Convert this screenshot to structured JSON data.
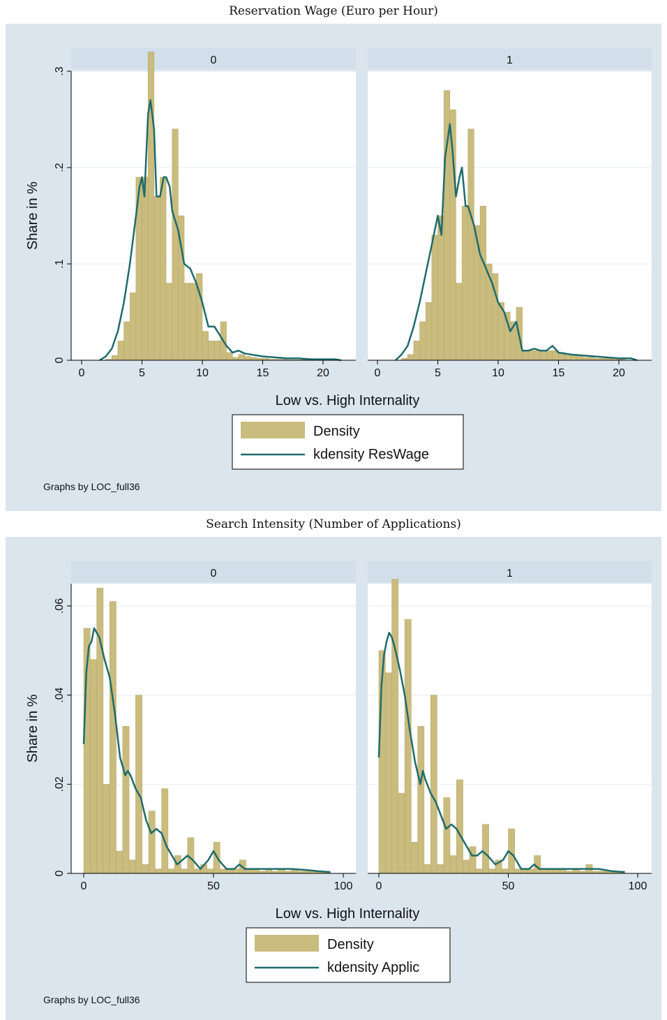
{
  "figures": [
    {
      "title": "Reservation Wage (Euro per Hour)",
      "ylabel": "Share in %",
      "xlabel": "Low vs. High Internality",
      "legend": [
        "Density",
        "kdensity ResWage"
      ],
      "note": "Graphs by LOC_full36"
    },
    {
      "title": "Search Intensity (Number of Applications)",
      "ylabel": "Share in %",
      "xlabel": "Low vs. High Internality",
      "legend": [
        "Density",
        "kdensity Applic"
      ],
      "note": "Graphs by LOC_full36"
    }
  ],
  "colors": {
    "background": "#dae5ee",
    "plot_region": "#ffffff",
    "strip": "#d2dfea",
    "bar_fill": "#c9bc7e",
    "bar_edge": "#b3a566",
    "density_line": "#1f6b6b",
    "gridline": "#e6ecf1"
  },
  "chart_data": [
    {
      "type": "bar",
      "title": "Reservation Wage (Euro per Hour)",
      "xlabel": "Low vs. High Internality",
      "ylabel": "Share in %",
      "xlim": [
        0,
        22
      ],
      "ylim": [
        0,
        0.3
      ],
      "xticks": [
        0,
        5,
        10,
        15,
        20
      ],
      "yticks": [
        0,
        0.1,
        0.2,
        0.3
      ],
      "ytick_labels": [
        "0",
        ".1",
        ".2",
        ".3"
      ],
      "grid": true,
      "legend_position": "bottom-center",
      "bin_width": 0.5,
      "series": [
        {
          "facet": "0",
          "name": "Density",
          "x": [
            2,
            2.5,
            3,
            3.5,
            4,
            4.5,
            5,
            5.5,
            6,
            6.5,
            7,
            7.5,
            8,
            8.5,
            9,
            9.5,
            10,
            10.5,
            11,
            11.5,
            12,
            12.5,
            13,
            13.5,
            14,
            14.5,
            15,
            15.5,
            16,
            16.5,
            17,
            17.5,
            18,
            18.5,
            19,
            19.5,
            20
          ],
          "values": [
            0.001,
            0.005,
            0.02,
            0.04,
            0.07,
            0.19,
            0.19,
            0.32,
            0.17,
            0.19,
            0.08,
            0.24,
            0.15,
            0.08,
            0.08,
            0.09,
            0.03,
            0.02,
            0.02,
            0.04,
            0.008,
            0.003,
            0.006,
            0.004,
            0.003,
            0.002,
            0.002,
            0.001,
            0.001,
            0.001,
            0.0005,
            0.0005,
            0.0005,
            0.0005,
            0.0005,
            0.0005,
            0.0005
          ]
        },
        {
          "facet": "0",
          "name": "kdensity ResWage",
          "x": [
            1.5,
            2,
            2.5,
            3,
            3.5,
            4,
            4.5,
            4.8,
            5,
            5.2,
            5.5,
            5.7,
            6,
            6.2,
            6.5,
            6.8,
            7,
            7.3,
            7.5,
            8,
            8.5,
            9,
            9.5,
            10,
            10.5,
            11,
            11.5,
            12,
            12.5,
            13,
            13.5,
            14,
            15,
            16,
            17,
            18,
            19,
            20,
            21,
            21.5
          ],
          "values": [
            0,
            0.004,
            0.012,
            0.03,
            0.06,
            0.1,
            0.15,
            0.18,
            0.19,
            0.17,
            0.255,
            0.27,
            0.24,
            0.17,
            0.17,
            0.19,
            0.19,
            0.18,
            0.155,
            0.135,
            0.1,
            0.095,
            0.08,
            0.06,
            0.035,
            0.035,
            0.025,
            0.015,
            0.008,
            0.01,
            0.007,
            0.006,
            0.004,
            0.003,
            0.002,
            0.002,
            0.001,
            0.001,
            0.001,
            0
          ]
        },
        {
          "facet": "1",
          "name": "Density",
          "x": [
            2,
            2.5,
            3,
            3.5,
            4,
            4.5,
            5,
            5.5,
            6,
            6.5,
            7,
            7.5,
            8,
            8.5,
            9,
            9.5,
            10,
            10.5,
            11,
            11.5,
            12,
            12.5,
            13,
            13.5,
            14,
            14.5,
            15,
            15.5,
            16,
            16.5,
            17,
            17.5,
            18,
            18.5,
            19,
            19.5,
            20
          ],
          "values": [
            0.002,
            0.006,
            0.02,
            0.04,
            0.06,
            0.13,
            0.15,
            0.28,
            0.26,
            0.08,
            0.16,
            0.24,
            0.14,
            0.16,
            0.1,
            0.09,
            0.06,
            0.05,
            0.04,
            0.055,
            0.01,
            0.01,
            0.01,
            0.01,
            0.01,
            0.01,
            0.008,
            0.006,
            0.005,
            0.004,
            0.003,
            0.003,
            0.002,
            0.002,
            0.002,
            0.001,
            0.001
          ]
        },
        {
          "facet": "1",
          "name": "kdensity ResWage",
          "x": [
            1.5,
            2,
            2.5,
            3,
            3.5,
            4,
            4.5,
            5,
            5.3,
            5.6,
            6,
            6.2,
            6.5,
            6.8,
            7,
            7.3,
            7.5,
            8,
            8.5,
            9,
            9.5,
            10,
            10.5,
            11,
            11.5,
            12,
            12.5,
            13,
            13.5,
            14,
            14.5,
            15,
            16,
            17,
            18,
            19,
            20,
            21,
            21.5
          ],
          "values": [
            0,
            0.006,
            0.015,
            0.035,
            0.06,
            0.09,
            0.12,
            0.15,
            0.13,
            0.21,
            0.245,
            0.22,
            0.17,
            0.19,
            0.2,
            0.16,
            0.16,
            0.14,
            0.11,
            0.095,
            0.08,
            0.06,
            0.05,
            0.03,
            0.04,
            0.01,
            0.01,
            0.012,
            0.01,
            0.01,
            0.015,
            0.008,
            0.006,
            0.005,
            0.004,
            0.003,
            0.002,
            0.002,
            0
          ]
        }
      ]
    },
    {
      "type": "bar",
      "title": "Search Intensity (Number of Applications)",
      "xlabel": "Low vs. High Internality",
      "ylabel": "Share in %",
      "xlim": [
        -3,
        101
      ],
      "ylim": [
        0,
        0.065
      ],
      "xticks": [
        0,
        50,
        100
      ],
      "yticks": [
        0,
        0.02,
        0.04,
        0.06
      ],
      "ytick_labels": [
        "0",
        ".02",
        ".04",
        ".06"
      ],
      "grid": true,
      "legend_position": "bottom-center",
      "bin_width": 2.5,
      "series": [
        {
          "facet": "0",
          "name": "Density",
          "x": [
            0,
            2.5,
            5,
            7.5,
            10,
            12.5,
            15,
            17.5,
            20,
            22.5,
            25,
            27.5,
            30,
            32.5,
            35,
            37.5,
            40,
            42.5,
            45,
            47.5,
            50,
            52.5,
            55,
            57.5,
            60,
            62.5,
            65,
            67.5,
            70,
            72.5,
            75,
            77.5,
            80,
            82.5,
            85,
            87.5,
            90,
            92.5
          ],
          "values": [
            0.055,
            0.048,
            0.064,
            0.02,
            0.061,
            0.005,
            0.033,
            0.003,
            0.04,
            0.002,
            0.014,
            0.001,
            0.019,
            0.001,
            0.004,
            0.001,
            0.008,
            0.001,
            0.002,
            0.001,
            0.007,
            0.001,
            0.001,
            0.001,
            0.003,
            0.001,
            0.001,
            0.0005,
            0.001,
            0.0005,
            0.001,
            0.0005,
            0.0008,
            0.0005,
            0.0005,
            0.0005,
            0.0005,
            0.0005
          ]
        },
        {
          "facet": "0",
          "name": "kdensity Applic",
          "x": [
            0,
            1,
            2,
            3,
            4,
            5,
            6,
            8,
            10,
            12,
            14,
            16,
            17,
            18,
            20,
            22,
            24,
            26,
            28,
            30,
            32,
            34,
            36,
            38,
            40,
            42,
            45,
            48,
            50,
            52,
            55,
            58,
            60,
            62,
            65,
            70,
            75,
            80,
            85,
            90,
            95
          ],
          "values": [
            0.029,
            0.045,
            0.051,
            0.052,
            0.055,
            0.054,
            0.053,
            0.048,
            0.044,
            0.036,
            0.026,
            0.022,
            0.023,
            0.022,
            0.019,
            0.017,
            0.012,
            0.009,
            0.01,
            0.009,
            0.006,
            0.004,
            0.002,
            0.003,
            0.004,
            0.003,
            0.001,
            0.003,
            0.005,
            0.003,
            0.001,
            0.001,
            0.002,
            0.001,
            0.001,
            0.001,
            0.001,
            0.001,
            0.0008,
            0.0005,
            0.0003
          ]
        },
        {
          "facet": "1",
          "name": "Density",
          "x": [
            0,
            2.5,
            5,
            7.5,
            10,
            12.5,
            15,
            17.5,
            20,
            22.5,
            25,
            27.5,
            30,
            32.5,
            35,
            37.5,
            40,
            42.5,
            45,
            47.5,
            50,
            52.5,
            55,
            57.5,
            60,
            62.5,
            65,
            67.5,
            70,
            72.5,
            75,
            77.5,
            80,
            82.5,
            85,
            87.5,
            90,
            92.5
          ],
          "values": [
            0.05,
            0.045,
            0.066,
            0.018,
            0.057,
            0.007,
            0.033,
            0.002,
            0.04,
            0.002,
            0.017,
            0.004,
            0.021,
            0.003,
            0.006,
            0.001,
            0.011,
            0.001,
            0.003,
            0.001,
            0.01,
            0.001,
            0.001,
            0.001,
            0.004,
            0.001,
            0.001,
            0.001,
            0.001,
            0.0005,
            0.001,
            0.0005,
            0.002,
            0.0005,
            0.0005,
            0.0005,
            0.0005,
            0.0005
          ]
        },
        {
          "facet": "1",
          "name": "kdensity Applic",
          "x": [
            0,
            1,
            2,
            3,
            4,
            5,
            6,
            8,
            10,
            12,
            14,
            16,
            17,
            18,
            20,
            22,
            24,
            26,
            28,
            30,
            32,
            34,
            36,
            38,
            40,
            42,
            45,
            48,
            50,
            52,
            55,
            58,
            60,
            62,
            65,
            70,
            75,
            80,
            85,
            90,
            95
          ],
          "values": [
            0.026,
            0.042,
            0.049,
            0.052,
            0.054,
            0.053,
            0.051,
            0.046,
            0.04,
            0.032,
            0.025,
            0.02,
            0.023,
            0.021,
            0.018,
            0.016,
            0.013,
            0.01,
            0.011,
            0.01,
            0.008,
            0.006,
            0.004,
            0.004,
            0.005,
            0.004,
            0.002,
            0.003,
            0.005,
            0.004,
            0.001,
            0.001,
            0.002,
            0.001,
            0.001,
            0.001,
            0.001,
            0.001,
            0.001,
            0.0005,
            0.0003
          ]
        }
      ]
    }
  ]
}
